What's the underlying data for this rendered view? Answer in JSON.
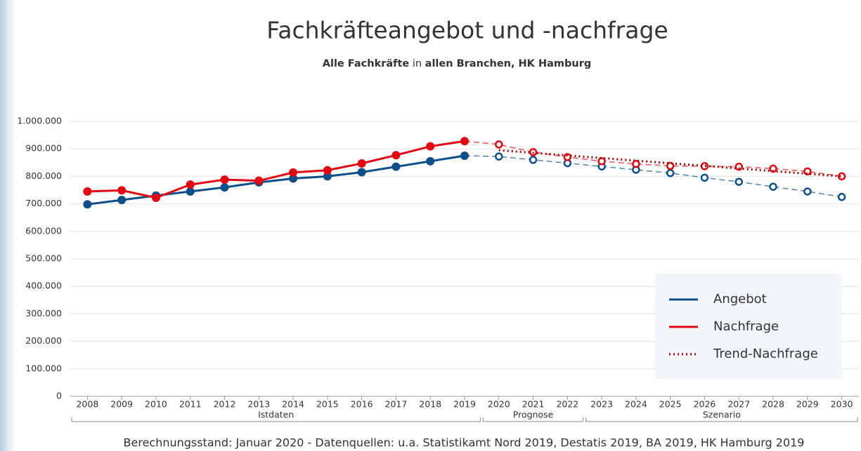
{
  "chart_data": {
    "type": "line",
    "title": "Fachkräfteangebot und -nachfrage",
    "subtitle_parts": [
      "Alle Fachkräfte",
      "in",
      "allen Branchen, HK Hamburg"
    ],
    "footer": "Berechnungsstand: Januar 2020 - Datenquellen: u.a. Statistikamt Nord 2019, Destatis 2019, BA 2019, HK Hamburg 2019",
    "x": [
      2008,
      2009,
      2010,
      2011,
      2012,
      2013,
      2014,
      2015,
      2016,
      2017,
      2018,
      2019,
      2020,
      2021,
      2022,
      2023,
      2024,
      2025,
      2026,
      2027,
      2028,
      2029,
      2030
    ],
    "xlim": [
      2007.5,
      2030.5
    ],
    "xticks": [
      2008,
      2009,
      2010,
      2011,
      2012,
      2013,
      2014,
      2015,
      2016,
      2017,
      2018,
      2019,
      2020,
      2021,
      2022,
      2023,
      2024,
      2025,
      2026,
      2027,
      2028,
      2029,
      2030
    ],
    "ylim": [
      0,
      1000000
    ],
    "yticks": [
      0,
      {
        "value": 100000,
        "label": "100.000"
      },
      {
        "value": 200000,
        "label": "200.000"
      },
      {
        "value": 300000,
        "label": "300.000"
      },
      {
        "value": 400000,
        "label": "400.000"
      },
      {
        "value": 500000,
        "label": "500.000"
      },
      {
        "value": 600000,
        "label": "600.000"
      },
      {
        "value": 700000,
        "label": "700.000"
      },
      {
        "value": 800000,
        "label": "800.000"
      },
      {
        "value": 900000,
        "label": "900.000"
      },
      {
        "value": 1000000,
        "label": "1.000.000"
      }
    ],
    "grid": true,
    "forecast_from": 2020,
    "periods": [
      {
        "label": "Istdaten",
        "from": 2008,
        "to": 2019
      },
      {
        "label": "Prognose",
        "from": 2020,
        "to": 2022
      },
      {
        "label": "Szenario",
        "from": 2023,
        "to": 2030
      }
    ],
    "legend": "lower right",
    "series": [
      {
        "name": "Angebot",
        "color": "#0d4f8b",
        "dash": "solid",
        "values": [
          698000,
          714000,
          730000,
          745000,
          760000,
          778000,
          792000,
          800000,
          815000,
          835000,
          855000,
          875000,
          872000,
          860000,
          848000,
          836000,
          824000,
          812000,
          795000,
          780000,
          762000,
          745000,
          725000
        ]
      },
      {
        "name": "Nachfrage",
        "color": "#e30613",
        "dash": "solid",
        "values": [
          745000,
          749000,
          722000,
          770000,
          788000,
          784000,
          814000,
          822000,
          847000,
          877000,
          909000,
          928000,
          916000,
          888000,
          870000,
          855000,
          845000,
          838000,
          837000,
          835000,
          828000,
          818000,
          800000
        ]
      },
      {
        "name": "Trend-Nachfrage",
        "color": "#a00000",
        "dash": "dotted",
        "x": [
          2020,
          2030
        ],
        "values": [
          895000,
          800000
        ]
      }
    ]
  }
}
